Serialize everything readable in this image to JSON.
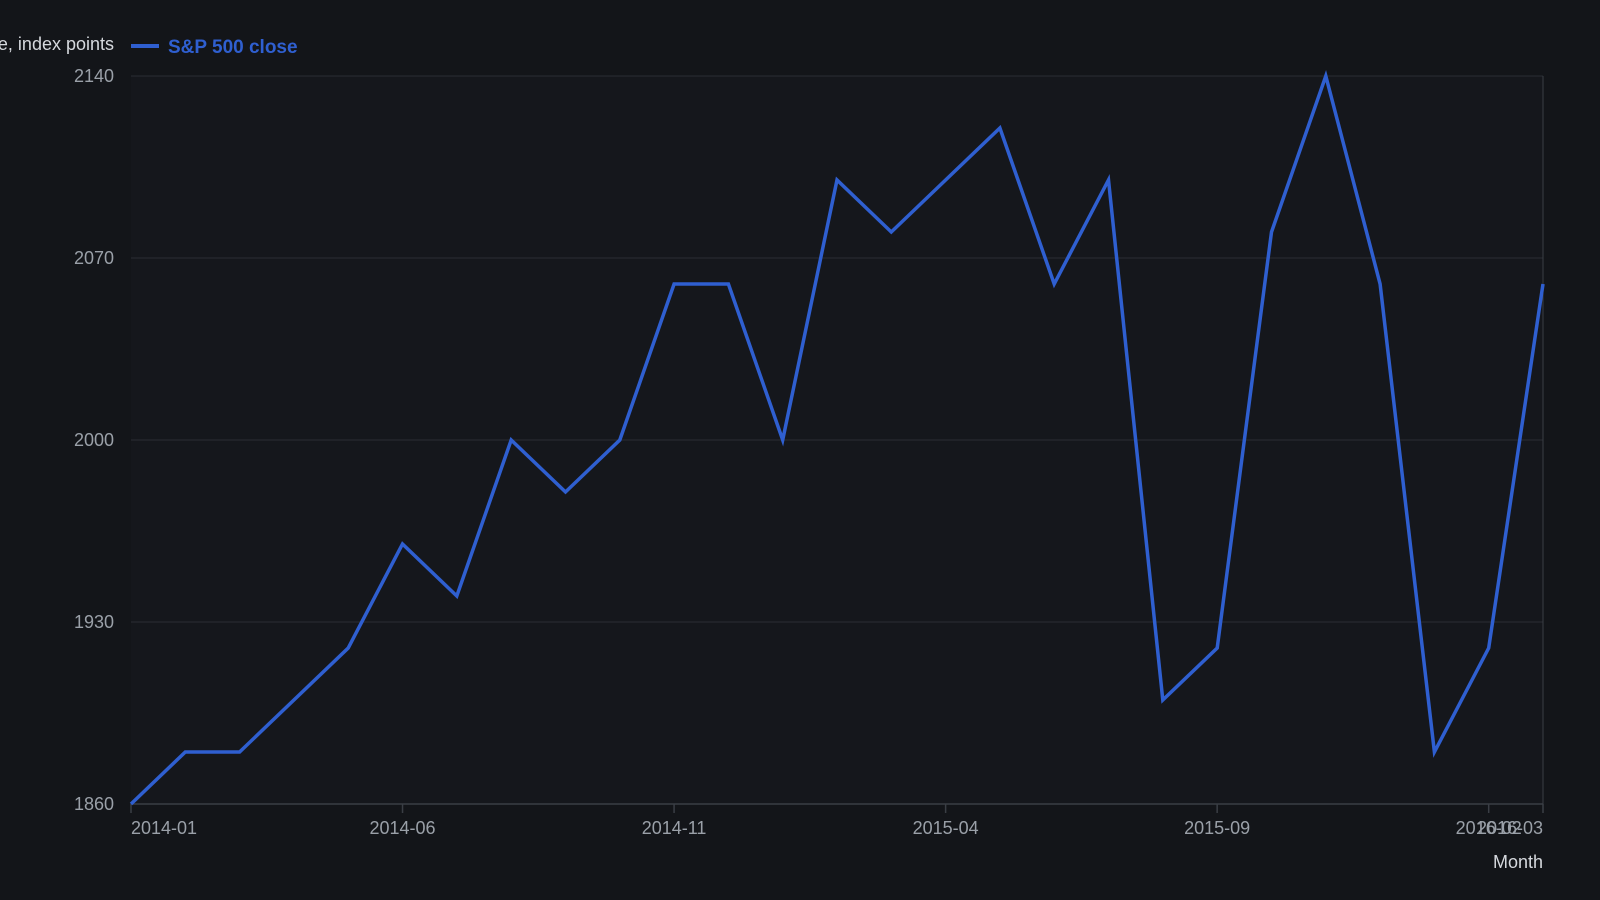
{
  "chart_data": {
    "type": "line",
    "ylabel": "Close, index points",
    "xlabel": "Month",
    "ylim": [
      1860,
      2140
    ],
    "yticks": [
      "1860",
      "1930",
      "2000",
      "2070",
      "2140"
    ],
    "xticks": [
      "2014-01",
      "2014-06",
      "2014-11",
      "2015-04",
      "2015-09",
      "2016-02",
      "2016-03"
    ],
    "grid": true,
    "legend_position": "top-left",
    "x": [
      "2014-01",
      "2014-02",
      "2014-03",
      "2014-04",
      "2014-05",
      "2014-06",
      "2014-07",
      "2014-08",
      "2014-09",
      "2014-10",
      "2014-11",
      "2014-12",
      "2015-01",
      "2015-02",
      "2015-03",
      "2015-04",
      "2015-05",
      "2015-06",
      "2015-07",
      "2015-08",
      "2015-09",
      "2015-10",
      "2015-11",
      "2015-12",
      "2016-01",
      "2016-02",
      "2016-03"
    ],
    "series": [
      {
        "name": "S&P 500 close",
        "color": "#2f5fd0",
        "values": [
          1860,
          1880,
          1880,
          1900,
          1920,
          1960,
          1940,
          2000,
          1980,
          2000,
          2060,
          2060,
          2000,
          2100,
          2080,
          2100,
          2120,
          2060,
          2100,
          1900,
          1920,
          2080,
          2140,
          2060,
          1880,
          1920,
          2060
        ]
      }
    ]
  },
  "colors": {
    "background": "#131519",
    "plot_background": "#15171c",
    "grid": "#2a2d33",
    "axis": "#3a3e45",
    "line": "#2f5fd0"
  }
}
